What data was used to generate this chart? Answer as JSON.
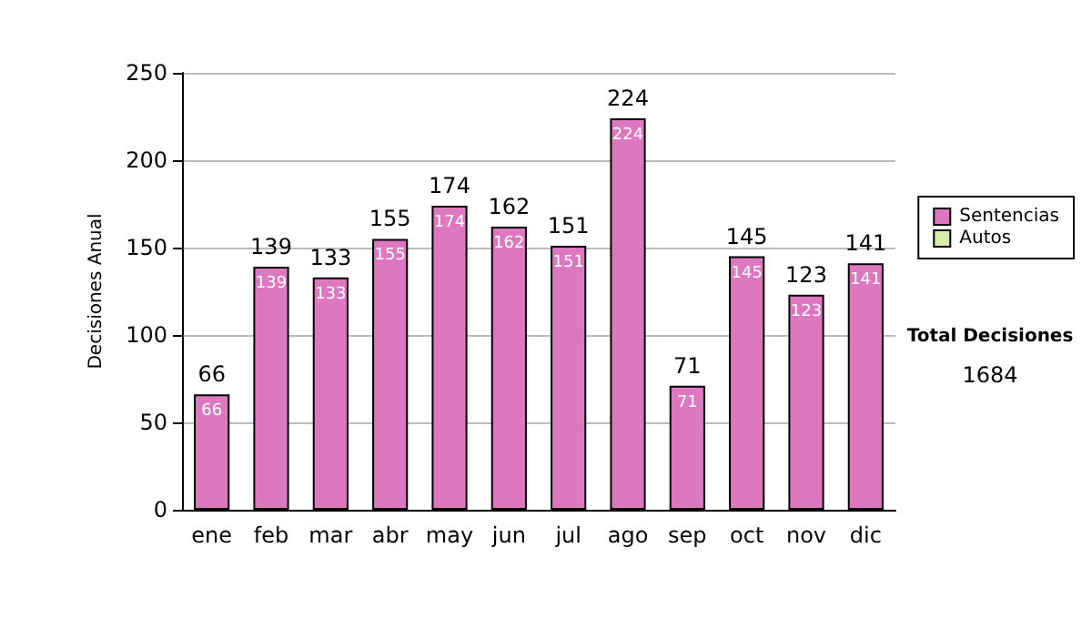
{
  "chart_data": {
    "type": "bar",
    "ylabel": "Decisiones Anual",
    "categories": [
      "ene",
      "feb",
      "mar",
      "abr",
      "may",
      "jun",
      "jul",
      "ago",
      "sep",
      "oct",
      "nov",
      "dic"
    ],
    "series": [
      {
        "name": "Sentencias",
        "color": "#dd77c0",
        "values": [
          66,
          139,
          133,
          155,
          174,
          162,
          151,
          224,
          71,
          145,
          123,
          141
        ],
        "value_labels": [
          "66",
          "139",
          "133",
          "155",
          "174",
          "162",
          "151",
          "224",
          "71",
          "145",
          "123",
          "141"
        ]
      },
      {
        "name": "Autos",
        "color": "#d8ecaa",
        "values": [
          0,
          0,
          0,
          0,
          0,
          0,
          0,
          0,
          0,
          0,
          0,
          0
        ]
      }
    ],
    "stacked": true,
    "totals": [
      "66",
      "139",
      "133",
      "155",
      "174",
      "162",
      "151",
      "224",
      "71",
      "145",
      "123",
      "141"
    ],
    "ylim": [
      0,
      250
    ],
    "yticks": [
      0,
      50,
      100,
      150,
      200,
      250
    ],
    "grid": "y",
    "legend": "right",
    "annotations": [
      "Total Decisiones",
      "1684"
    ]
  }
}
